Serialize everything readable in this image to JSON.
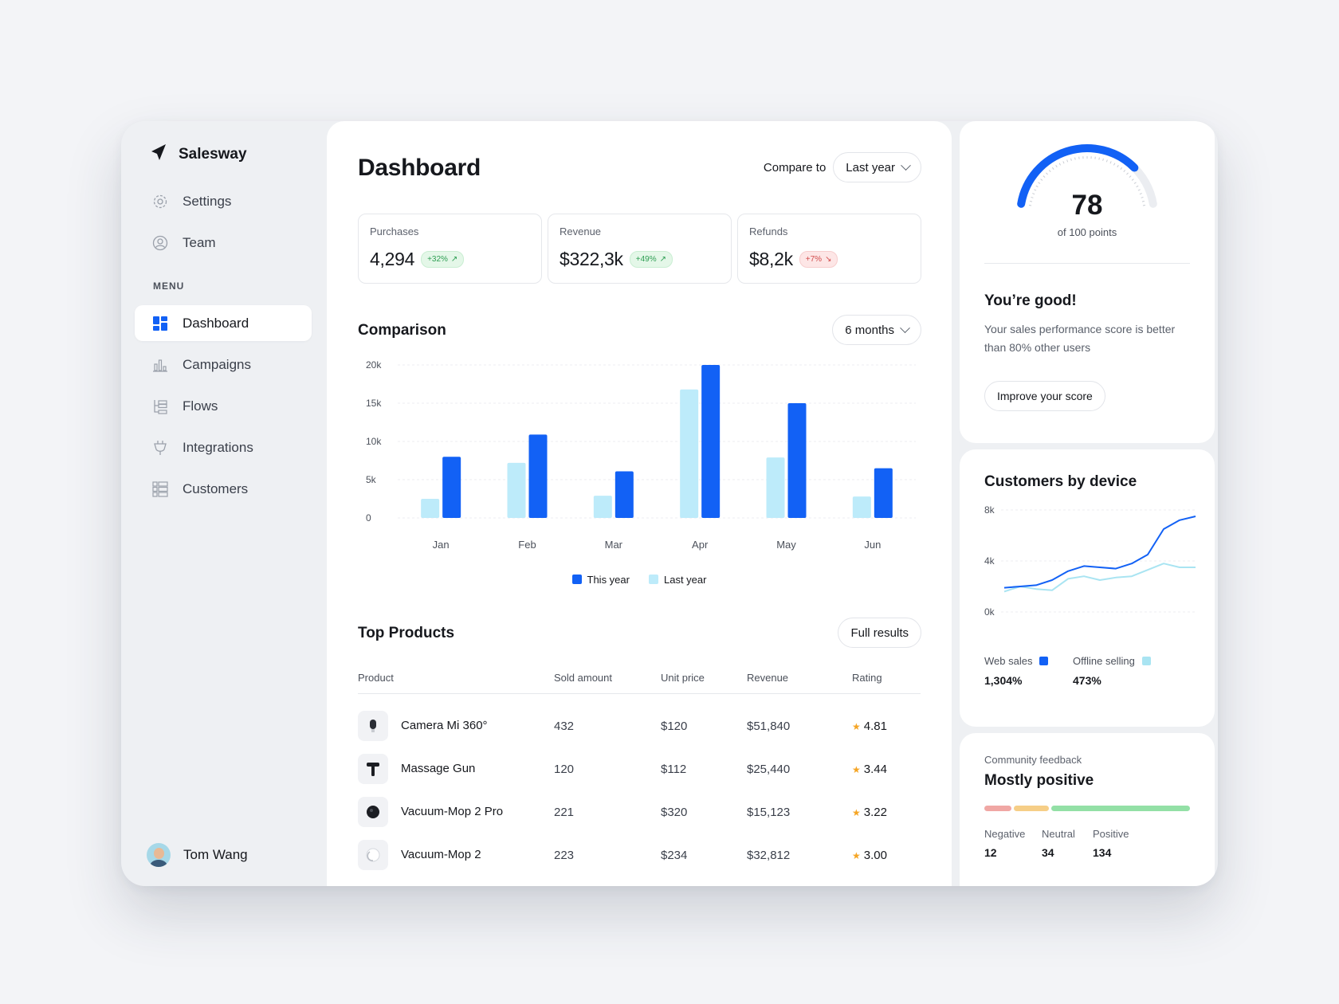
{
  "brand": {
    "name": "Salesway"
  },
  "sidebar": {
    "top_items": [
      {
        "label": "Settings",
        "icon": "gear-icon"
      },
      {
        "label": "Team",
        "icon": "user-circle-icon"
      }
    ],
    "menu_label": "MENU",
    "menu_items": [
      {
        "label": "Dashboard",
        "icon": "grid-icon",
        "active": true
      },
      {
        "label": "Campaigns",
        "icon": "bar-chart-icon"
      },
      {
        "label": "Flows",
        "icon": "flow-icon"
      },
      {
        "label": "Integrations",
        "icon": "plug-icon"
      },
      {
        "label": "Customers",
        "icon": "list-icon"
      }
    ],
    "user": {
      "name": "Tom Wang"
    }
  },
  "header": {
    "title": "Dashboard",
    "compare_label": "Compare to",
    "compare_value": "Last year"
  },
  "stats": [
    {
      "label": "Purchases",
      "value": "4,294",
      "change": "+32%",
      "trend": "up"
    },
    {
      "label": "Revenue",
      "value": "$322,3k",
      "change": "+49%",
      "trend": "up"
    },
    {
      "label": "Refunds",
      "value": "$8,2k",
      "change": "+7%",
      "trend": "down"
    }
  ],
  "comparison": {
    "title": "Comparison",
    "range_value": "6 months"
  },
  "chart_data": [
    {
      "type": "bar",
      "categories": [
        "Jan",
        "Feb",
        "Mar",
        "Apr",
        "May",
        "Jun"
      ],
      "series": [
        {
          "name": "Last year",
          "color": "#bdebfa",
          "values": [
            2500,
            7200,
            2900,
            16800,
            7900,
            2800
          ]
        },
        {
          "name": "This year",
          "color": "#1261f5",
          "values": [
            8000,
            10900,
            6100,
            20000,
            15000,
            6500
          ]
        }
      ],
      "yticks": [
        "0",
        "5k",
        "10k",
        "15k",
        "20k"
      ],
      "ylim": [
        0,
        20000
      ],
      "grid": true,
      "legend": "bottom-center"
    },
    {
      "type": "line",
      "title": "Customers by device",
      "yticks": [
        "0k",
        "4k",
        "8k"
      ],
      "ylim": [
        0,
        8000
      ],
      "grid": true,
      "series": [
        {
          "name": "Web sales",
          "color": "#1261f5",
          "values": [
            1900,
            2000,
            2100,
            2500,
            3200,
            3600,
            3500,
            3400,
            3800,
            4500,
            6500,
            7200,
            7500
          ]
        },
        {
          "name": "Offline selling",
          "color": "#a9e4f2",
          "values": [
            1600,
            2000,
            1800,
            1700,
            2600,
            2800,
            2500,
            2700,
            2800,
            3300,
            3800,
            3500,
            3500
          ]
        }
      ]
    }
  ],
  "top_products": {
    "title": "Top Products",
    "button": "Full results",
    "columns": [
      "Product",
      "Sold amount",
      "Unit price",
      "Revenue",
      "Rating"
    ],
    "rows": [
      {
        "name": "Camera Mi 360°",
        "sold": "432",
        "price": "$120",
        "revenue": "$51,840",
        "rating": "4.81"
      },
      {
        "name": "Massage Gun",
        "sold": "120",
        "price": "$112",
        "revenue": "$25,440",
        "rating": "3.44"
      },
      {
        "name": "Vacuum-Mop 2 Pro",
        "sold": "221",
        "price": "$320",
        "revenue": "$15,123",
        "rating": "3.22"
      },
      {
        "name": "Vacuum-Mop 2",
        "sold": "223",
        "price": "$234",
        "revenue": "$32,812",
        "rating": "3.00"
      }
    ]
  },
  "score": {
    "value": "78",
    "score_fraction": 0.78,
    "sub": "of 100 points",
    "title": "You’re good!",
    "text": "Your sales performance score is better than 80% other users",
    "button": "Improve your score"
  },
  "devices": {
    "title": "Customers by device",
    "web_label": "Web sales",
    "web_value": "1,304%",
    "offline_label": "Offline selling",
    "offline_value": "473%"
  },
  "feedback": {
    "label": "Community feedback",
    "title": "Mostly positive",
    "items": [
      {
        "label": "Negative",
        "value": "12",
        "count": 12,
        "color": "#f0a7a4"
      },
      {
        "label": "Neutral",
        "value": "34",
        "count": 34,
        "color": "#f6ce87"
      },
      {
        "label": "Positive",
        "value": "134",
        "count": 134,
        "color": "#93e0a6"
      }
    ]
  }
}
